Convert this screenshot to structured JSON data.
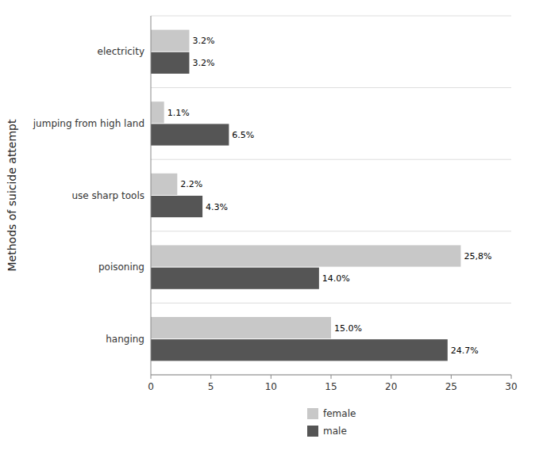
{
  "chart_data": {
    "type": "bar",
    "orientation": "horizontal",
    "y_label": "Methods of suicide attempt",
    "categories": [
      "hanging",
      "poisoning",
      "use sharp tools",
      "jumping from high land",
      "electricity"
    ],
    "series": [
      {
        "name": "female",
        "color": "#c8c8c8",
        "values": [
          15.0,
          25.8,
          2.2,
          1.1,
          3.2
        ],
        "value_labels": [
          "15.0%",
          "25,8%",
          "2.2%",
          "1.1%",
          "3.2%"
        ]
      },
      {
        "name": "male",
        "color": "#555555",
        "values": [
          24.7,
          14.0,
          4.3,
          6.5,
          3.2
        ],
        "value_labels": [
          "24.7%",
          "14.0%",
          "4.3%",
          "6.5%",
          "3.2%"
        ]
      }
    ],
    "xlim": [
      0,
      30
    ],
    "xticks": [
      0,
      5,
      10,
      15,
      20,
      25,
      30
    ],
    "data_labels": true,
    "grid": true,
    "legend": "bottom"
  }
}
